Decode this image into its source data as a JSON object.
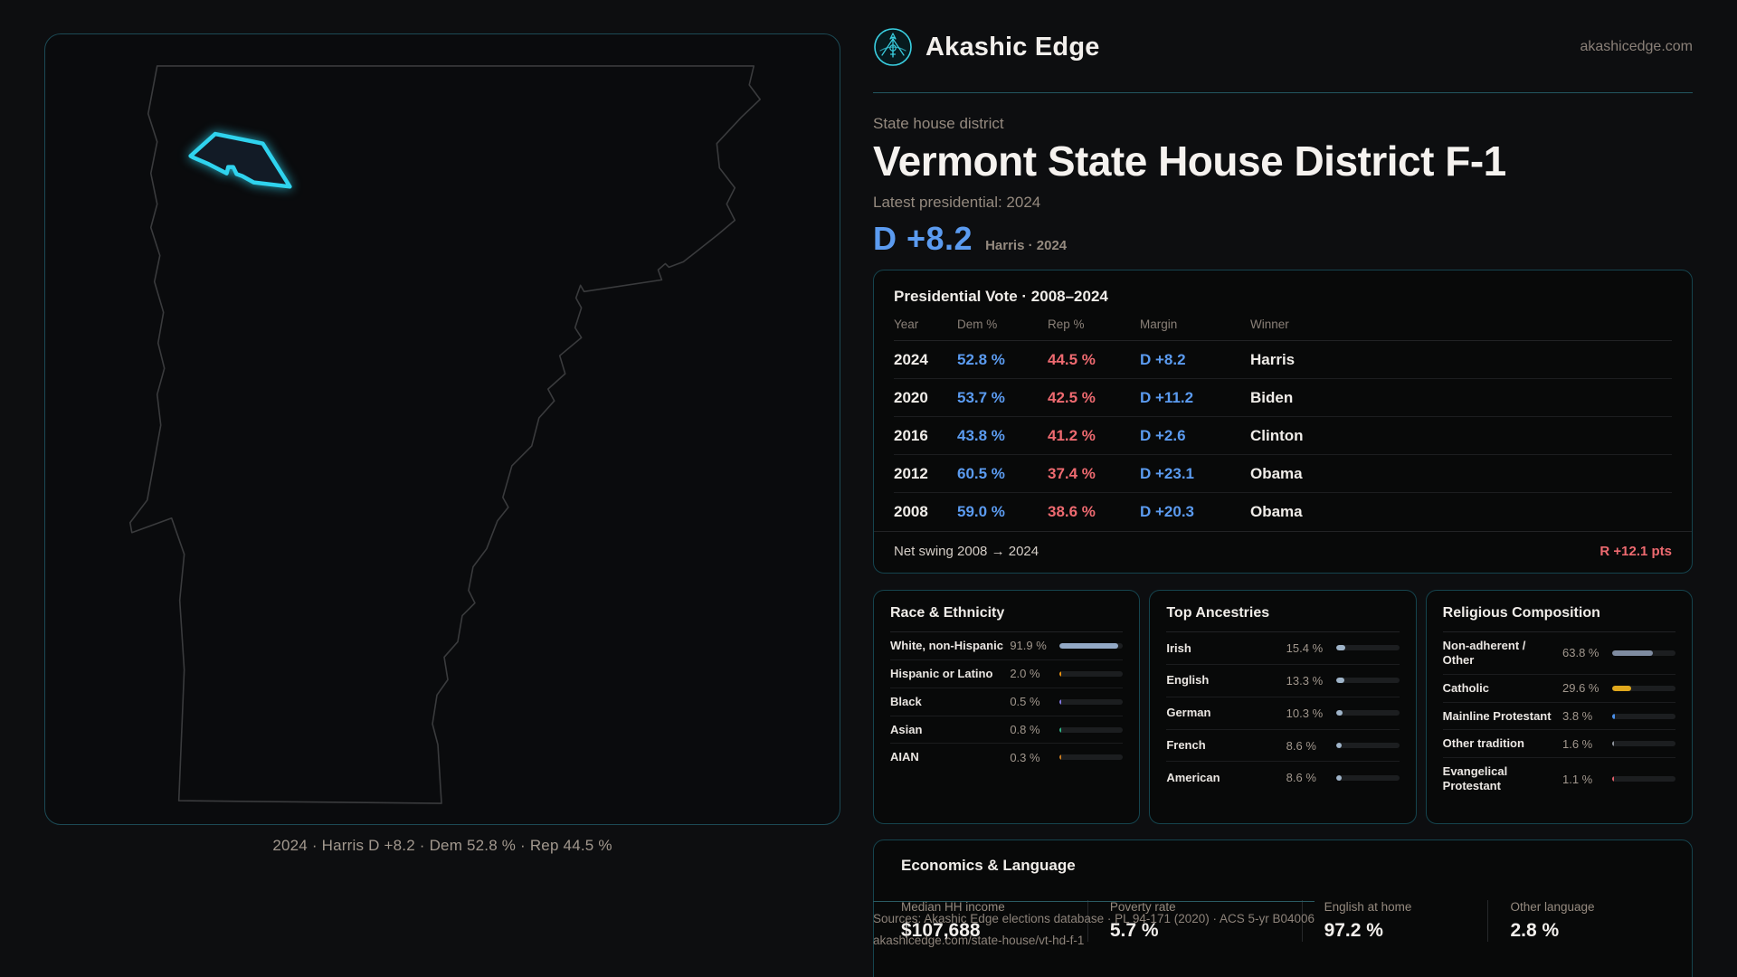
{
  "brand": {
    "name": "Akashic Edge",
    "domain": "akashicedge.com"
  },
  "page": {
    "kicker": "State house district",
    "title": "Vermont State House District F-1",
    "subtitle": "Latest presidential: 2024",
    "headline_margin": "D +8.2",
    "headline_note": "Harris · 2024"
  },
  "map": {
    "caption": "2024 · Harris D +8.2 · Dem 52.8 % · Rep 44.5 %"
  },
  "vote_table": {
    "title": "Presidential Vote · 2008–2024",
    "columns": {
      "year": "Year",
      "dem": "Dem %",
      "rep": "Rep %",
      "margin": "Margin",
      "winner": "Winner"
    },
    "rows": [
      {
        "year": "2024",
        "dem": "52.8 %",
        "rep": "44.5 %",
        "margin": "D +8.2",
        "winner": "Harris"
      },
      {
        "year": "2020",
        "dem": "53.7 %",
        "rep": "42.5 %",
        "margin": "D +11.2",
        "winner": "Biden"
      },
      {
        "year": "2016",
        "dem": "43.8 %",
        "rep": "41.2 %",
        "margin": "D +2.6",
        "winner": "Clinton"
      },
      {
        "year": "2012",
        "dem": "60.5 %",
        "rep": "37.4 %",
        "margin": "D +23.1",
        "winner": "Obama"
      },
      {
        "year": "2008",
        "dem": "59.0 %",
        "rep": "38.6 %",
        "margin": "D +20.3",
        "winner": "Obama"
      }
    ],
    "net_swing_label": "Net swing 2008 → 2024",
    "net_swing_value": "R +12.1 pts"
  },
  "race": {
    "title": "Race & Ethnicity",
    "rows": [
      {
        "label": "White, non-Hispanic",
        "value": "91.9 %",
        "pct": 91.9,
        "color": "#93a9c6"
      },
      {
        "label": "Hispanic or Latino",
        "value": "2.0 %",
        "pct": 2.0,
        "color": "#eb930f"
      },
      {
        "label": "Black",
        "value": "0.5 %",
        "pct": 0.5,
        "color": "#8376e2"
      },
      {
        "label": "Asian",
        "value": "0.8 %",
        "pct": 0.8,
        "color": "#2fb585"
      },
      {
        "label": "AIAN",
        "value": "0.3 %",
        "pct": 0.3,
        "color": "#cd7d1f"
      }
    ]
  },
  "ancestries": {
    "title": "Top Ancestries",
    "rows": [
      {
        "label": "Irish",
        "value": "15.4 %",
        "pct": 15.4,
        "color": "#9fb4c9"
      },
      {
        "label": "English",
        "value": "13.3 %",
        "pct": 13.3,
        "color": "#9fb4c9"
      },
      {
        "label": "German",
        "value": "10.3 %",
        "pct": 10.3,
        "color": "#9fb4c9"
      },
      {
        "label": "French",
        "value": "8.6 %",
        "pct": 8.6,
        "color": "#9fb4c9"
      },
      {
        "label": "American",
        "value": "8.6 %",
        "pct": 8.6,
        "color": "#9fb4c9"
      }
    ]
  },
  "religion": {
    "title": "Religious Composition",
    "rows": [
      {
        "label": "Non-adherent / Other",
        "value": "63.8 %",
        "pct": 63.8,
        "color": "#7e8ba0"
      },
      {
        "label": "Catholic",
        "value": "29.6 %",
        "pct": 29.6,
        "color": "#e0a81d"
      },
      {
        "label": "Mainline Protestant",
        "value": "3.8 %",
        "pct": 3.8,
        "color": "#4a8fe8"
      },
      {
        "label": "Other tradition",
        "value": "1.6 %",
        "pct": 1.6,
        "color": "#8f959c"
      },
      {
        "label": "Evangelical Protestant",
        "value": "1.1 %",
        "pct": 1.1,
        "color": "#e2606a"
      }
    ]
  },
  "economics": {
    "title": "Economics & Language",
    "stats": [
      {
        "label": "Median HH income",
        "value": "$107,688"
      },
      {
        "label": "Poverty rate",
        "value": "5.7 %"
      },
      {
        "label": "English at home",
        "value": "97.2 %"
      },
      {
        "label": "Other language",
        "value": "2.8 %"
      }
    ]
  },
  "sources": {
    "line1": "Sources: Akashic Edge elections database · PL 94-171 (2020) · ACS 5-yr B04006",
    "line2": "akashicedge.com/state-house/vt-hd-f-1"
  },
  "colors": {
    "dem_blue": "#5b9bf0",
    "rep_red": "#ee6a70",
    "accent_cyan": "#2fd3ee",
    "gold": "#e0a81d",
    "panel_border": "#15444e"
  }
}
